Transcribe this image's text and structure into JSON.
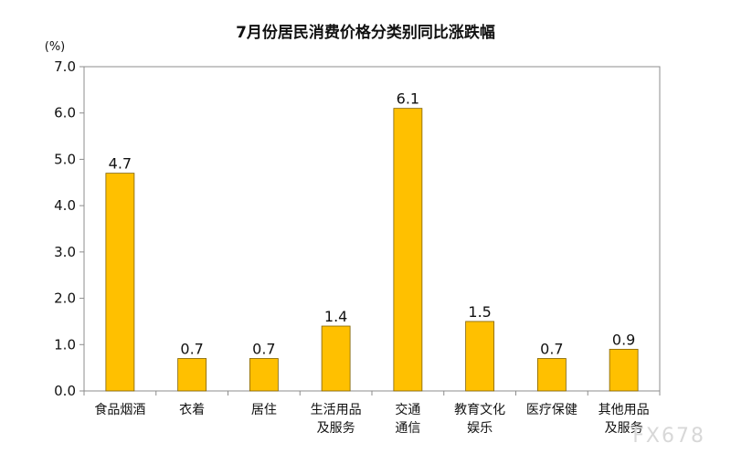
{
  "chart_data": {
    "type": "bar",
    "title": "7月份居民消费价格分类别同比涨跌幅",
    "unit_label": "(%)",
    "categories": [
      [
        "食品烟酒"
      ],
      [
        "衣着"
      ],
      [
        "居住"
      ],
      [
        "生活用品",
        "及服务"
      ],
      [
        "交通",
        "通信"
      ],
      [
        "教育文化",
        "娱乐"
      ],
      [
        "医疗保健"
      ],
      [
        "其他用品",
        "及服务"
      ]
    ],
    "values": [
      4.7,
      0.7,
      0.7,
      1.4,
      6.1,
      1.5,
      0.7,
      0.9
    ],
    "value_labels": [
      "4.7",
      "0.7",
      "0.7",
      "1.4",
      "6.1",
      "1.5",
      "0.7",
      "0.9"
    ],
    "ylim": [
      0,
      7
    ],
    "yticks": [
      "0.0",
      "1.0",
      "2.0",
      "3.0",
      "4.0",
      "5.0",
      "6.0",
      "7.0"
    ],
    "bar_color": "#FFC000",
    "grid": false
  },
  "watermark": "FX678"
}
